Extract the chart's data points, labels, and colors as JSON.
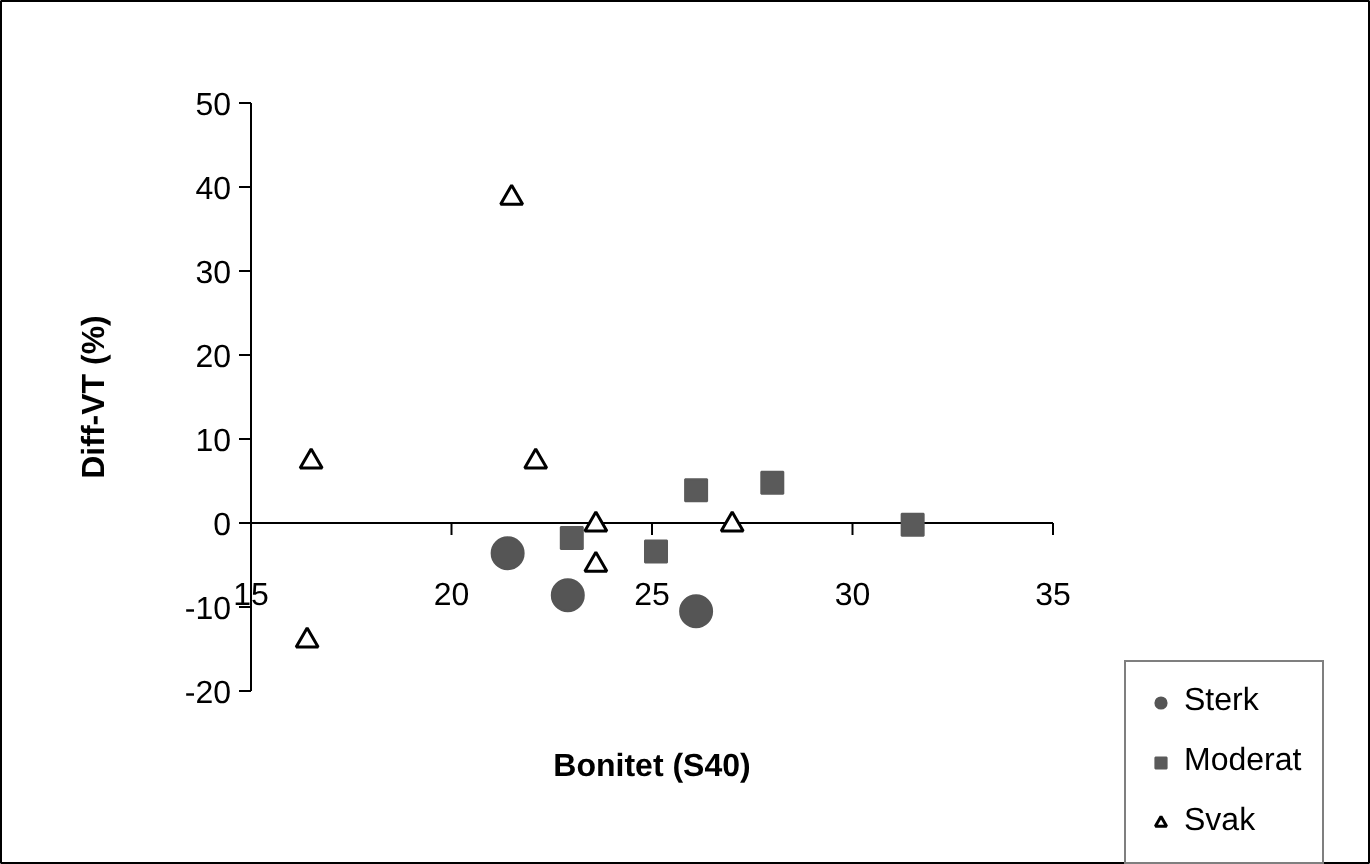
{
  "chart_data": {
    "type": "scatter",
    "xlabel": "Bonitet (S40)",
    "ylabel": "Diff-VT (%)",
    "xlim": [
      15,
      35
    ],
    "ylim": [
      -20,
      50
    ],
    "xticks": [
      15,
      20,
      25,
      30,
      35
    ],
    "yticks": [
      -20,
      -10,
      0,
      10,
      20,
      30,
      40,
      50
    ],
    "grid": false,
    "legend": "bottom right",
    "series": [
      {
        "name": "Sterk",
        "color": "#555555",
        "marker": "circle",
        "x": [
          21.4,
          22.9,
          26.1
        ],
        "values": [
          -3.6,
          -8.6,
          -10.5
        ]
      },
      {
        "name": "Moderat",
        "color": "#5a5a5a",
        "marker": "square",
        "x": [
          23.0,
          25.1,
          26.1,
          28.0,
          31.5
        ],
        "values": [
          -1.8,
          -3.4,
          3.9,
          4.8,
          -0.2
        ]
      },
      {
        "name": "Svak",
        "color": "#000000",
        "marker": "triangle",
        "x": [
          16.5,
          21.5,
          22.1,
          23.6,
          23.6,
          27.0,
          16.4
        ],
        "values": [
          7.3,
          38.7,
          7.3,
          -0.2,
          -5.0,
          -0.2,
          -14.0
        ]
      }
    ]
  }
}
